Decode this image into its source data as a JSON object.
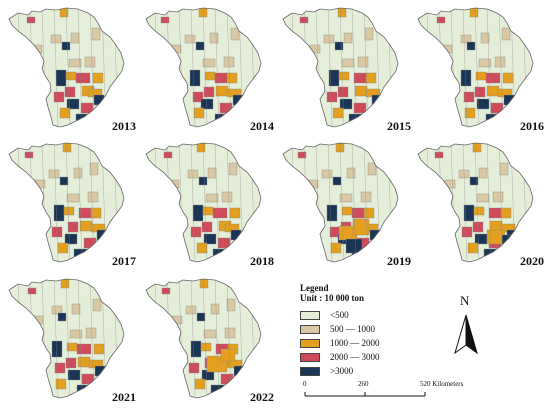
{
  "colors": {
    "class1": "#e5eed8",
    "class2": "#d9c8a2",
    "class3": "#e39f1d",
    "class4": "#cf4b5a",
    "class5": "#1b3556",
    "border": "#8a8a8a"
  },
  "maps": [
    {
      "year": "2013"
    },
    {
      "year": "2014"
    },
    {
      "year": "2015"
    },
    {
      "year": "2016"
    },
    {
      "year": "2017"
    },
    {
      "year": "2018"
    },
    {
      "year": "2019"
    },
    {
      "year": "2020"
    },
    {
      "year": "2021"
    },
    {
      "year": "2022"
    }
  ],
  "legend": {
    "title": "Legend",
    "unit": "Unit : 10 000 ton",
    "items": [
      {
        "label": "<500",
        "color": "#e5eed8"
      },
      {
        "label": "500 — 1000",
        "color": "#d9c8a2"
      },
      {
        "label": "1000 — 2000",
        "color": "#e39f1d"
      },
      {
        "label": "2000 — 3000",
        "color": "#cf4b5a"
      },
      {
        "label": ">3000",
        "color": "#1b3556"
      }
    ]
  },
  "north_arrow": {
    "label": "N"
  },
  "scale_bar": {
    "ticks": [
      "0",
      "260",
      "520 Kilometers"
    ]
  }
}
